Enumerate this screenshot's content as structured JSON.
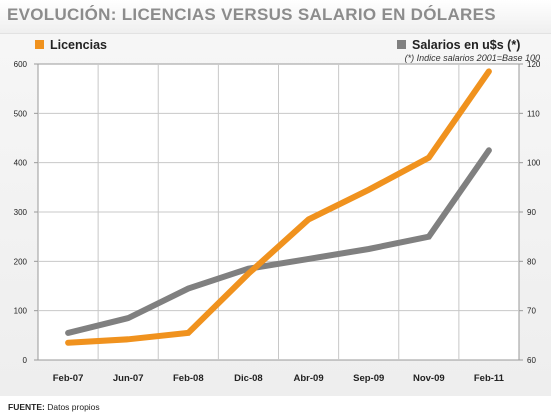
{
  "title": "EVOLUCIÓN: LICENCIAS VERSUS SALARIO EN DÓLARES",
  "legend": {
    "licencias": "Licencias",
    "salarios": "Salarios en u$s (*)"
  },
  "note": "(*) Indice salarios 2001=Base 100",
  "footer": {
    "label": "FUENTE:",
    "text": "Datos propios"
  },
  "colors": {
    "licencias": "#f0921e",
    "salarios": "#808080"
  },
  "chart_data": {
    "type": "line",
    "categories": [
      "Feb-07",
      "Jun-07",
      "Feb-08",
      "Dic-08",
      "Abr-09",
      "Sep-09",
      "Nov-09",
      "Feb-11"
    ],
    "y_left": {
      "ticks": [
        0,
        100,
        200,
        300,
        400,
        500,
        600
      ],
      "ylim": [
        0,
        600
      ]
    },
    "y_right": {
      "ticks": [
        60,
        70,
        80,
        90,
        100,
        110,
        120
      ],
      "ylim": [
        60,
        120
      ]
    },
    "grid": true,
    "legend_position": "top",
    "series": [
      {
        "name": "Licencias",
        "axis": "left",
        "values": [
          35,
          42,
          55,
          175,
          285,
          345,
          410,
          585
        ]
      },
      {
        "name": "Salarios en u$s (*)",
        "axis": "right",
        "values": [
          65.5,
          68.5,
          74.5,
          78.5,
          80.5,
          82.5,
          85,
          102.5
        ]
      }
    ]
  }
}
